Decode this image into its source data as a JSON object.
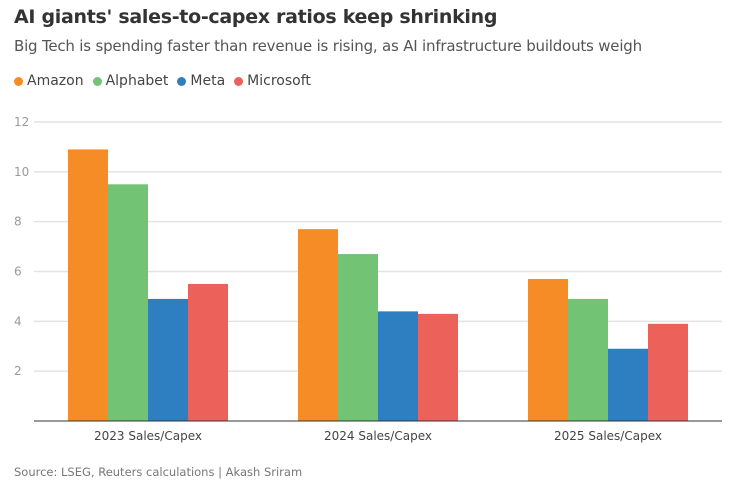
{
  "chart_data": {
    "type": "bar",
    "title": "AI giants' sales-to-capex ratios keep shrinking",
    "subtitle": "Big Tech is spending faster than revenue is rising, as AI infrastructure buildouts weigh",
    "categories": [
      "2023 Sales/Capex",
      "2024 Sales/Capex",
      "2025 Sales/Capex"
    ],
    "series": [
      {
        "name": "Amazon",
        "color": "#f58c25",
        "values": [
          10.9,
          7.7,
          5.7
        ]
      },
      {
        "name": "Alphabet",
        "color": "#72c474",
        "values": [
          9.5,
          6.7,
          4.9
        ]
      },
      {
        "name": "Meta",
        "color": "#2e7fc1",
        "values": [
          4.9,
          4.4,
          2.9
        ]
      },
      {
        "name": "Microsoft",
        "color": "#ec625b",
        "values": [
          5.5,
          4.3,
          3.9
        ]
      }
    ],
    "yticks": [
      "2",
      "4",
      "6",
      "8",
      "10",
      "12"
    ],
    "ylim": [
      0,
      12
    ],
    "xlabel": "",
    "ylabel": "",
    "legend": "top-left",
    "grid": true,
    "source": "Source: LSEG, Reuters calculations | Akash Sriram"
  }
}
